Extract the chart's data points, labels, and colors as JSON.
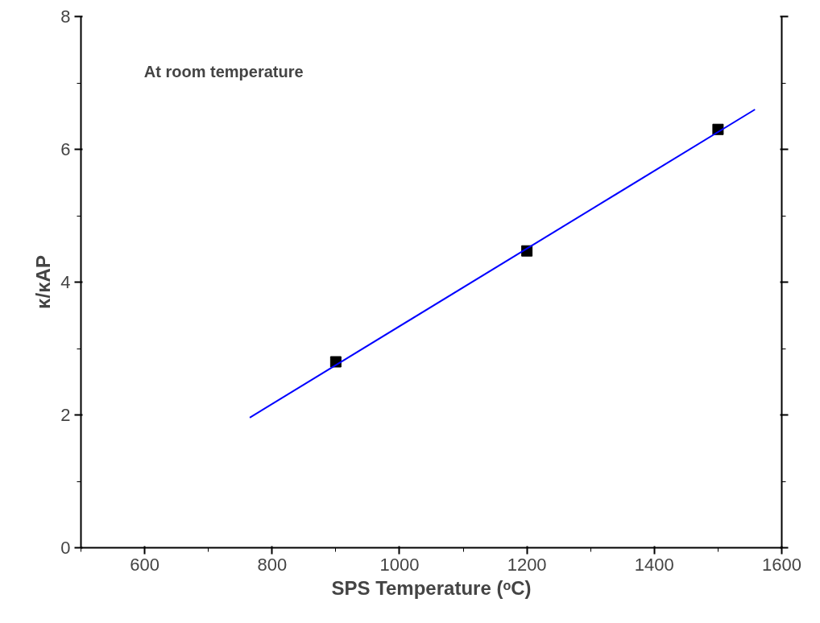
{
  "chart_data": {
    "type": "scatter",
    "xlabel": "SPS Temperature (ᵒC)",
    "ylabel": "κ/κAP",
    "annotations": [
      "At room temperature"
    ],
    "series": [
      {
        "type": "scatter",
        "color": "#000000",
        "marker": "square",
        "x": [
          900,
          1200,
          1500
        ],
        "values": [
          2.8,
          4.47,
          6.3
        ]
      },
      {
        "type": "line",
        "color": "#0000ff",
        "x": [
          765,
          1558
        ],
        "values": [
          1.96,
          6.6
        ],
        "line_style": "solid"
      }
    ],
    "xlim": [
      500,
      1600
    ],
    "ylim": [
      0,
      8
    ],
    "xticks": [
      600,
      800,
      1000,
      1200,
      1400,
      1600
    ],
    "yticks": [
      0,
      2,
      4,
      6,
      8
    ],
    "grid": false
  }
}
